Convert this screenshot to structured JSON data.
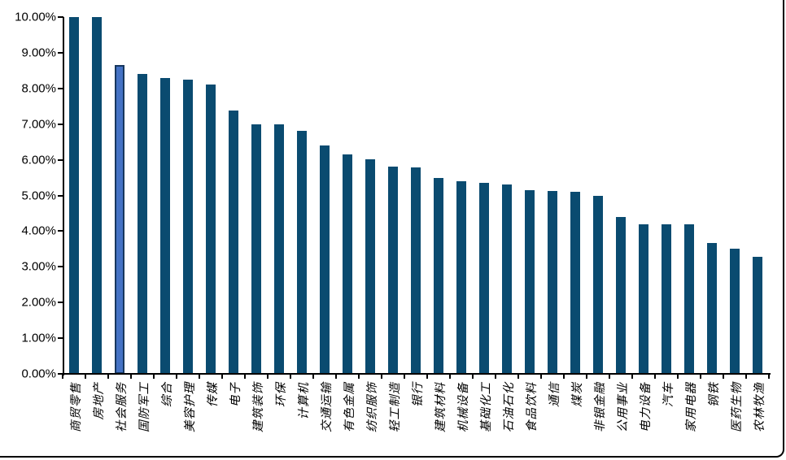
{
  "figure": {
    "background": "#ffffff",
    "border_color": "#000000"
  },
  "chart_data": {
    "type": "bar",
    "title": "",
    "xlabel": "",
    "ylabel": "",
    "grid": "off",
    "legend": "none",
    "axis_color": "#000000",
    "bar_color": "#0A4B70",
    "highlight": {
      "index": 2,
      "category": "社会服务",
      "fill": "#4472C4",
      "stroke": "#17375E"
    },
    "ylim": [
      0,
      10
    ],
    "y_tick_step": 1,
    "y_tick_labels": [
      "0.00%",
      "1.00%",
      "2.00%",
      "3.00%",
      "4.00%",
      "5.00%",
      "6.00%",
      "7.00%",
      "8.00%",
      "9.00%",
      "10.00%"
    ],
    "categories": [
      "商贸零售",
      "房地产",
      "社会服务",
      "国防军工",
      "综合",
      "美容护理",
      "传媒",
      "电子",
      "建筑装饰",
      "环保",
      "计算机",
      "交通运输",
      "有色金属",
      "纺织服饰",
      "轻工制造",
      "银行",
      "建筑材料",
      "机械设备",
      "基础化工",
      "石油石化",
      "食品饮料",
      "通信",
      "煤炭",
      "非银金融",
      "公用事业",
      "电力设备",
      "汽车",
      "家用电器",
      "钢铁",
      "医药生物",
      "农林牧渔"
    ],
    "values": [
      10.0,
      10.0,
      8.65,
      8.4,
      8.3,
      8.25,
      8.1,
      7.38,
      7.0,
      7.0,
      6.82,
      6.4,
      6.15,
      6.02,
      5.8,
      5.78,
      5.5,
      5.4,
      5.35,
      5.3,
      5.14,
      5.12,
      5.1,
      5.0,
      4.4,
      4.2,
      4.2,
      4.18,
      3.67,
      3.5,
      3.27
    ]
  }
}
